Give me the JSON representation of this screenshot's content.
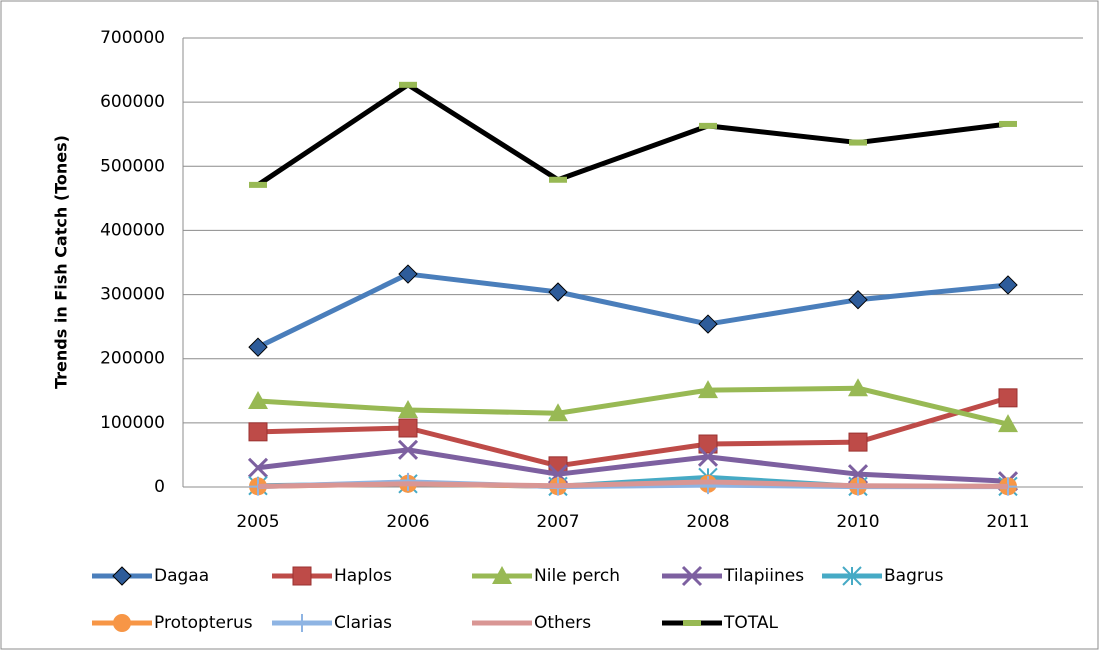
{
  "chart_data": {
    "type": "line",
    "y_label": "Trends in Fish Catch (Tones)",
    "categories": [
      "2005",
      "2006",
      "2007",
      "2008",
      "2010",
      "2011"
    ],
    "series": [
      {
        "name": "Dagaa",
        "color": "#4a7ebb",
        "marker": "diamond",
        "values": [
          218000,
          332000,
          304000,
          254000,
          292000,
          315000
        ]
      },
      {
        "name": "Haplos",
        "color": "#be4b48",
        "marker": "square",
        "values": [
          86000,
          92000,
          33000,
          67000,
          70000,
          139000
        ]
      },
      {
        "name": "Nile perch",
        "color": "#98b954",
        "marker": "triangle",
        "values": [
          134000,
          120000,
          115000,
          151000,
          154000,
          98000
        ]
      },
      {
        "name": "Tilapiines",
        "color": "#7d60a0",
        "marker": "x",
        "values": [
          30000,
          58000,
          20000,
          47000,
          20000,
          9000
        ]
      },
      {
        "name": "Bagrus",
        "color": "#46aac5",
        "marker": "star",
        "values": [
          2000,
          5000,
          1000,
          15000,
          1000,
          1000
        ]
      },
      {
        "name": "Protopterus",
        "color": "#f79646",
        "marker": "circle",
        "values": [
          1000,
          5000,
          1000,
          5000,
          1000,
          1000
        ]
      },
      {
        "name": "Clarias",
        "color": "#8eb4e3",
        "marker": "plus",
        "values": [
          500,
          8000,
          500,
          3000,
          500,
          500
        ]
      },
      {
        "name": "Others",
        "color": "#d99694",
        "marker": "none",
        "values": [
          1000,
          5000,
          2000,
          8000,
          2000,
          1000
        ]
      },
      {
        "name": "TOTAL",
        "color": "#000000",
        "marker": "dash",
        "values": [
          471000,
          627000,
          479000,
          563000,
          537000,
          566000
        ]
      }
    ],
    "ylim": [
      0,
      700000
    ],
    "yticks": [
      0,
      100000,
      200000,
      300000,
      400000,
      500000,
      600000,
      700000
    ],
    "grid": true,
    "legend": "bottom"
  }
}
